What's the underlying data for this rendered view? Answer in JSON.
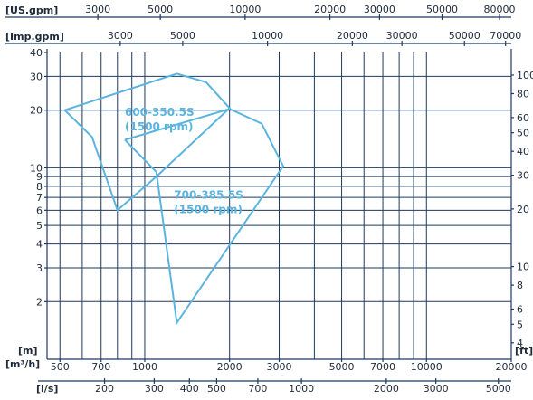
{
  "chart_data": {
    "type": "line",
    "x_scale": "log",
    "y_scale": "log",
    "xlim": [
      450,
      20000
    ],
    "ylim": [
      1,
      40
    ],
    "grid": true,
    "colors": {
      "series": "#5bb4e0",
      "grid": "#1e3a5f",
      "text": "#1e2a3a"
    },
    "unit_labels": {
      "us_gpm": "[US.gpm]",
      "imp_gpm": "[Imp.gpm]",
      "m": "[m]",
      "m3h": "[m³/h]",
      "ls": "[l/s]",
      "ft": "[ft]"
    },
    "x_ticks_m3h": [
      {
        "v": 500,
        "label": "500"
      },
      {
        "v": 700,
        "label": "700"
      },
      {
        "v": 1000,
        "label": "1000"
      },
      {
        "v": 2000,
        "label": "2000"
      },
      {
        "v": 3000,
        "label": "3000"
      },
      {
        "v": 5000,
        "label": "5000"
      },
      {
        "v": 7000,
        "label": "7000"
      },
      {
        "v": 10000,
        "label": "10000"
      },
      {
        "v": 20000,
        "label": "20000"
      }
    ],
    "x_grid_m3h": [
      500,
      600,
      700,
      800,
      900,
      1000,
      2000,
      3000,
      4000,
      5000,
      6000,
      7000,
      8000,
      9000,
      10000,
      20000
    ],
    "x_ticks_ls": [
      {
        "v": 200,
        "label": "200"
      },
      {
        "v": 300,
        "label": "300"
      },
      {
        "v": 400,
        "label": "400"
      },
      {
        "v": 500,
        "label": "500"
      },
      {
        "v": 700,
        "label": "700"
      },
      {
        "v": 1000,
        "label": "1000"
      },
      {
        "v": 2000,
        "label": "2000"
      },
      {
        "v": 3000,
        "label": "3000"
      },
      {
        "v": 5000,
        "label": "5000"
      }
    ],
    "x_ticks_us_gpm": [
      {
        "v": 3000,
        "label": "3000"
      },
      {
        "v": 5000,
        "label": "5000"
      },
      {
        "v": 10000,
        "label": "10000"
      },
      {
        "v": 20000,
        "label": "20000"
      },
      {
        "v": 30000,
        "label": "30000"
      },
      {
        "v": 50000,
        "label": "50000"
      },
      {
        "v": 80000,
        "label": "80000"
      }
    ],
    "x_ticks_imp_gpm": [
      {
        "v": 3000,
        "label": "3000"
      },
      {
        "v": 5000,
        "label": "5000"
      },
      {
        "v": 10000,
        "label": "10000"
      },
      {
        "v": 20000,
        "label": "20000"
      },
      {
        "v": 30000,
        "label": "30000"
      },
      {
        "v": 50000,
        "label": "50000"
      },
      {
        "v": 70000,
        "label": "70000"
      }
    ],
    "y_ticks_m": [
      {
        "v": 2,
        "label": "2"
      },
      {
        "v": 3,
        "label": "3"
      },
      {
        "v": 4,
        "label": "4"
      },
      {
        "v": 5,
        "label": "5"
      },
      {
        "v": 6,
        "label": "6"
      },
      {
        "v": 7,
        "label": "7"
      },
      {
        "v": 8,
        "label": "8"
      },
      {
        "v": 9,
        "label": "9"
      },
      {
        "v": 10,
        "label": "10"
      },
      {
        "v": 20,
        "label": "20"
      },
      {
        "v": 30,
        "label": "30"
      },
      {
        "v": 40,
        "label": "40"
      }
    ],
    "y_grid_m": [
      2,
      3,
      4,
      5,
      6,
      7,
      8,
      9,
      10,
      20,
      30
    ],
    "y_ticks_ft": [
      {
        "v": 4,
        "label": "4"
      },
      {
        "v": 5,
        "label": "5"
      },
      {
        "v": 6,
        "label": "6"
      },
      {
        "v": 8,
        "label": "8"
      },
      {
        "v": 10,
        "label": "10"
      },
      {
        "v": 20,
        "label": "20"
      },
      {
        "v": 30,
        "label": "30"
      },
      {
        "v": 40,
        "label": "40"
      },
      {
        "v": 50,
        "label": "50"
      },
      {
        "v": 60,
        "label": "60"
      },
      {
        "v": 80,
        "label": "80"
      },
      {
        "v": 100,
        "label": "100"
      }
    ],
    "series": [
      {
        "name": "600-350.5S",
        "sub": "(1500 rpm)",
        "label_at": {
          "x": 850,
          "y": 18.7
        },
        "points": [
          {
            "x": 520,
            "y": 20
          },
          {
            "x": 1300,
            "y": 31
          },
          {
            "x": 1650,
            "y": 28
          },
          {
            "x": 2000,
            "y": 20.5
          },
          {
            "x": 1100,
            "y": 9
          },
          {
            "x": 800,
            "y": 6
          },
          {
            "x": 650,
            "y": 14.5
          },
          {
            "x": 520,
            "y": 20
          }
        ]
      },
      {
        "name": "700-385.5S",
        "sub": "(1500 rpm)",
        "label_at": {
          "x": 1270,
          "y": 6.9
        },
        "points": [
          {
            "x": 850,
            "y": 14
          },
          {
            "x": 2000,
            "y": 20.3
          },
          {
            "x": 2600,
            "y": 17
          },
          {
            "x": 3100,
            "y": 10.2
          },
          {
            "x": 1300,
            "y": 1.55
          },
          {
            "x": 1100,
            "y": 9.5
          },
          {
            "x": 850,
            "y": 14
          }
        ]
      }
    ]
  }
}
